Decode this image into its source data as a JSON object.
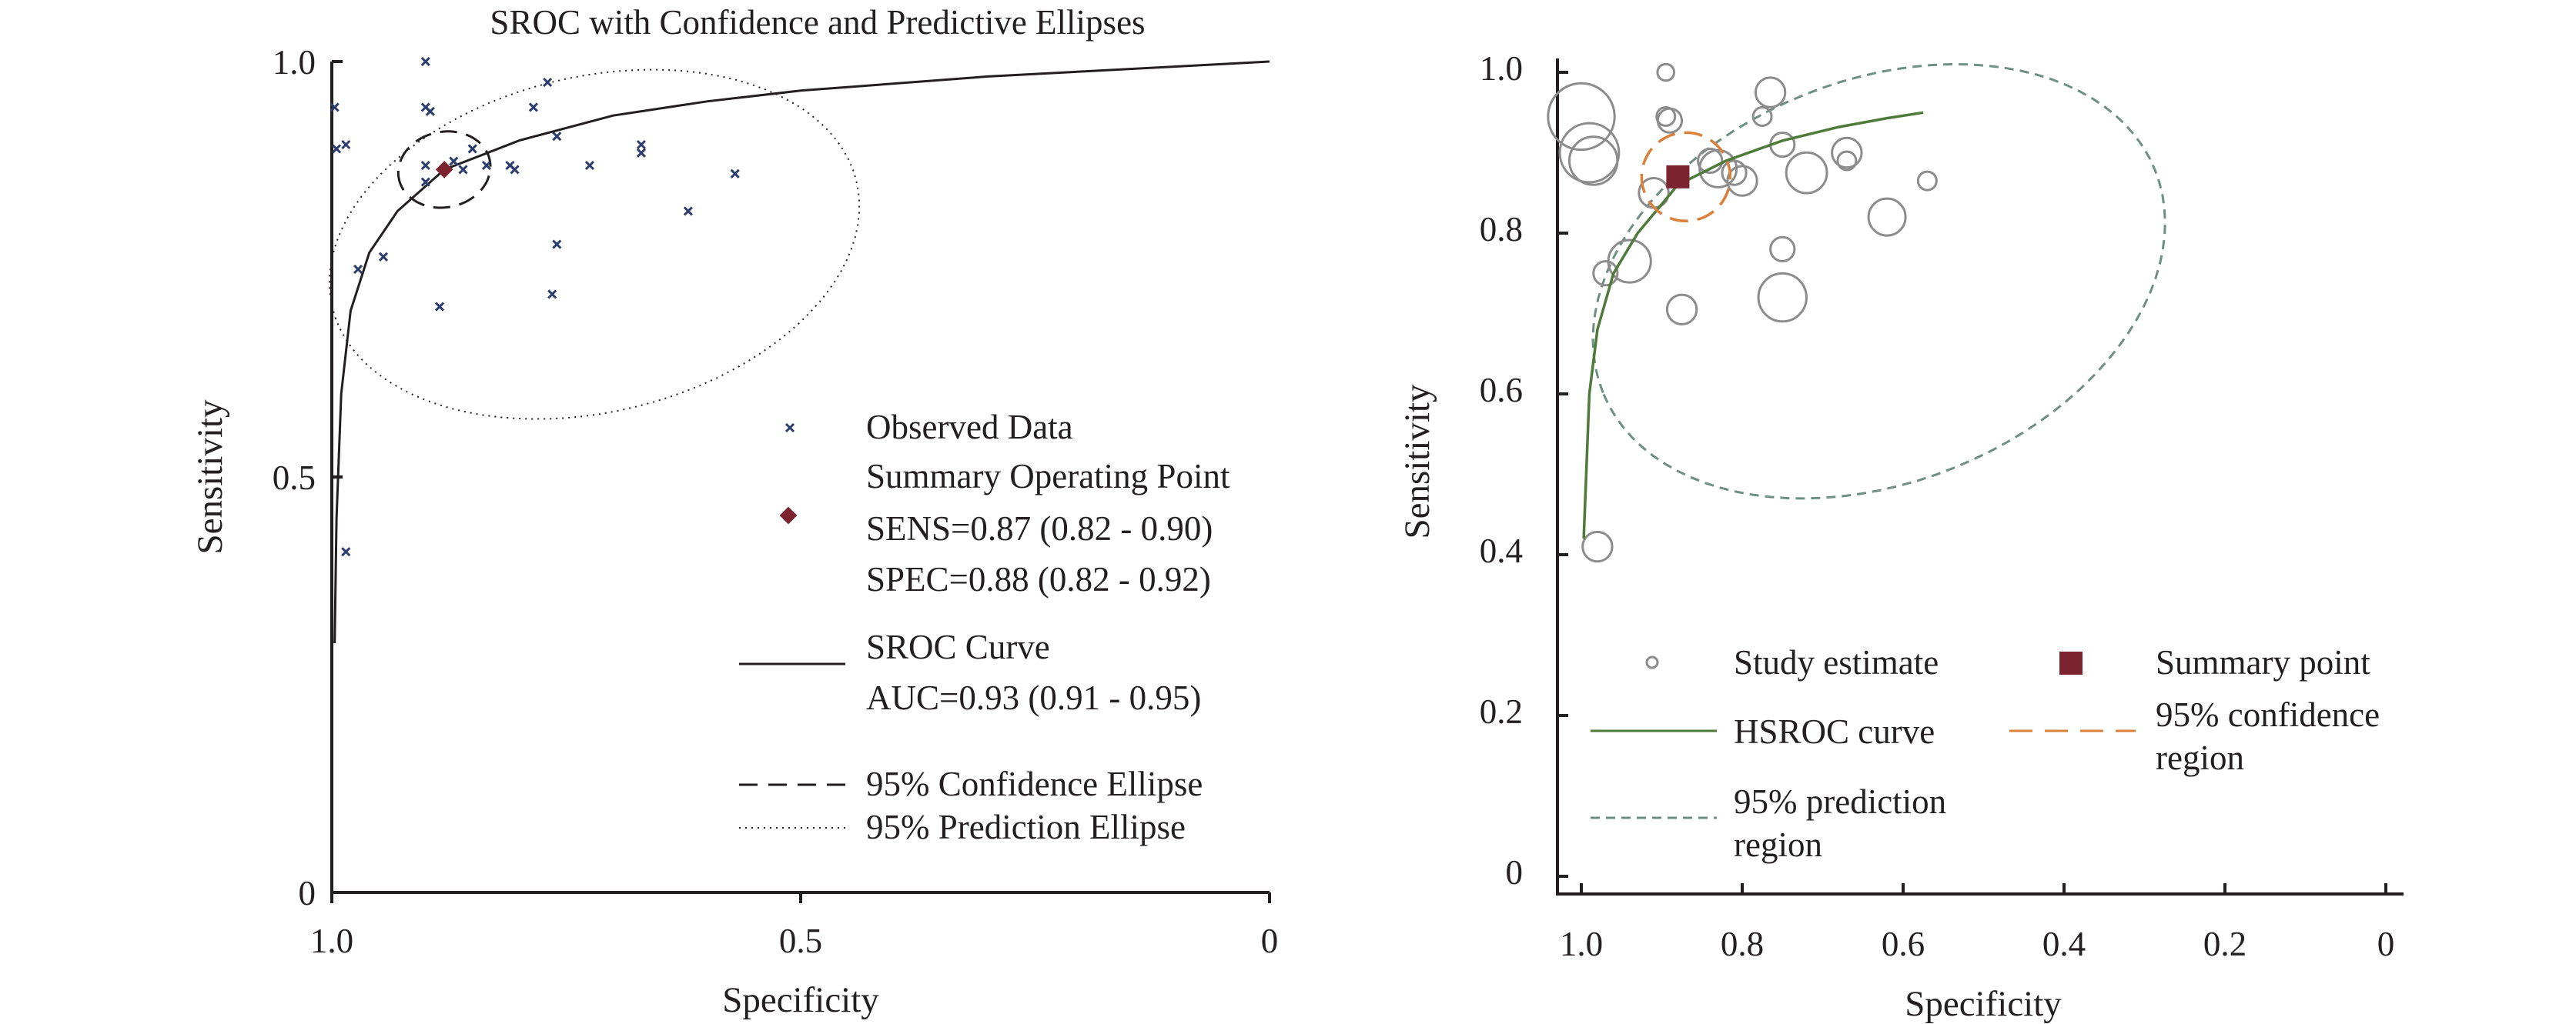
{
  "chart_data": [
    {
      "type": "scatter",
      "title": "SROC with Confidence and Predictive Ellipses",
      "xlabel": "Specificity",
      "ylabel": "Sensitivity",
      "xlim": [
        1.0,
        0.0
      ],
      "ylim": [
        0.0,
        1.0
      ],
      "x_ticks": [
        "1.0",
        "0.5",
        "0"
      ],
      "y_ticks": [
        "0",
        "0.5",
        "1.0"
      ],
      "grid": false,
      "legend_position": "lower-right",
      "legend": {
        "observed": "Observed Data",
        "summary": "Summary Operating Point",
        "sens": "SENS=0.87 (0.82 - 0.90)",
        "spec": "SPEC=0.88 (0.82 - 0.92)",
        "sroc": "SROC Curve",
        "auc": "AUC=0.93 (0.91 - 0.95)",
        "conf": "95% Confidence Ellipse",
        "pred": "95% Prediction Ellipse"
      },
      "colors": {
        "points": "#2b3d6e",
        "summary": "#7b2430",
        "lines": "#231f20"
      },
      "observed_points": [
        {
          "spec": 0.997,
          "sens": 0.945
        },
        {
          "spec": 0.995,
          "sens": 0.895
        },
        {
          "spec": 0.985,
          "sens": 0.9
        },
        {
          "spec": 0.985,
          "sens": 0.41
        },
        {
          "spec": 0.972,
          "sens": 0.75
        },
        {
          "spec": 0.945,
          "sens": 0.765
        },
        {
          "spec": 0.9,
          "sens": 1.0
        },
        {
          "spec": 0.9,
          "sens": 0.945
        },
        {
          "spec": 0.895,
          "sens": 0.94
        },
        {
          "spec": 0.9,
          "sens": 0.875
        },
        {
          "spec": 0.9,
          "sens": 0.855
        },
        {
          "spec": 0.885,
          "sens": 0.705
        },
        {
          "spec": 0.87,
          "sens": 0.88
        },
        {
          "spec": 0.86,
          "sens": 0.87
        },
        {
          "spec": 0.85,
          "sens": 0.895
        },
        {
          "spec": 0.835,
          "sens": 0.875
        },
        {
          "spec": 0.81,
          "sens": 0.875
        },
        {
          "spec": 0.805,
          "sens": 0.87
        },
        {
          "spec": 0.785,
          "sens": 0.945
        },
        {
          "spec": 0.77,
          "sens": 0.975
        },
        {
          "spec": 0.76,
          "sens": 0.91
        },
        {
          "spec": 0.76,
          "sens": 0.78
        },
        {
          "spec": 0.765,
          "sens": 0.72
        },
        {
          "spec": 0.725,
          "sens": 0.875
        },
        {
          "spec": 0.67,
          "sens": 0.9
        },
        {
          "spec": 0.67,
          "sens": 0.89
        },
        {
          "spec": 0.62,
          "sens": 0.82
        },
        {
          "spec": 0.57,
          "sens": 0.865
        }
      ],
      "summary_point": {
        "spec": 0.88,
        "sens": 0.87
      },
      "sroc_curve": [
        {
          "spec": 0.997,
          "sens": 0.3
        },
        {
          "spec": 0.995,
          "sens": 0.45
        },
        {
          "spec": 0.99,
          "sens": 0.6
        },
        {
          "spec": 0.98,
          "sens": 0.7
        },
        {
          "spec": 0.96,
          "sens": 0.77
        },
        {
          "spec": 0.93,
          "sens": 0.82
        },
        {
          "spec": 0.88,
          "sens": 0.87
        },
        {
          "spec": 0.8,
          "sens": 0.905
        },
        {
          "spec": 0.7,
          "sens": 0.935
        },
        {
          "spec": 0.6,
          "sens": 0.952
        },
        {
          "spec": 0.5,
          "sens": 0.965
        },
        {
          "spec": 0.3,
          "sens": 0.982
        },
        {
          "spec": 0.1,
          "sens": 0.994
        },
        {
          "spec": 0.0,
          "sens": 1.0
        }
      ],
      "confidence_ellipse": {
        "spec": 0.88,
        "sens": 0.87,
        "spec_halfwidth": 0.05,
        "sens_halfwidth": 0.045,
        "tilt_deg": -25
      },
      "prediction_ellipse": {
        "spec": 0.72,
        "sens": 0.78,
        "spec_halfwidth": 0.29,
        "sens_halfwidth": 0.2,
        "tilt_deg": -18
      }
    },
    {
      "type": "scatter",
      "title": "",
      "xlabel": "Specificity",
      "ylabel": "Sensitivity",
      "xlim": [
        1.0,
        0.0
      ],
      "ylim": [
        0.0,
        1.0
      ],
      "x_ticks": [
        "1.0",
        "0.8",
        "0.6",
        "0.4",
        "0.2",
        "0"
      ],
      "y_ticks": [
        "0",
        "0.2",
        "0.4",
        "0.6",
        "0.8",
        "1.0"
      ],
      "grid": false,
      "legend_position": "bottom",
      "legend": {
        "study": "Study estimate",
        "summary": "Summary point",
        "hsroc": "HSROC curve",
        "conf_line1": "95% confidence",
        "conf_line2": "region",
        "pred_line1": "95% prediction",
        "pred_line2": "region"
      },
      "colors": {
        "study": "#8c8c8c",
        "summary": "#7b2430",
        "hsroc": "#4e7a3a",
        "confidence": "#d9803a",
        "prediction": "#6e8f84"
      },
      "study_estimates": [
        {
          "spec": 1.0,
          "sens": 0.945,
          "weight": 3.6
        },
        {
          "spec": 0.99,
          "sens": 0.9,
          "weight": 3.2
        },
        {
          "spec": 0.985,
          "sens": 0.89,
          "weight": 2.6
        },
        {
          "spec": 0.98,
          "sens": 0.41,
          "weight": 1.6
        },
        {
          "spec": 0.97,
          "sens": 0.75,
          "weight": 1.3
        },
        {
          "spec": 0.94,
          "sens": 0.765,
          "weight": 2.3
        },
        {
          "spec": 0.91,
          "sens": 0.85,
          "weight": 1.6
        },
        {
          "spec": 0.895,
          "sens": 1.0,
          "weight": 0.9
        },
        {
          "spec": 0.895,
          "sens": 0.945,
          "weight": 1.0
        },
        {
          "spec": 0.89,
          "sens": 0.94,
          "weight": 1.3
        },
        {
          "spec": 0.875,
          "sens": 0.705,
          "weight": 1.6
        },
        {
          "spec": 0.84,
          "sens": 0.89,
          "weight": 1.3
        },
        {
          "spec": 0.83,
          "sens": 0.88,
          "weight": 2.0
        },
        {
          "spec": 0.81,
          "sens": 0.875,
          "weight": 1.3
        },
        {
          "spec": 0.8,
          "sens": 0.865,
          "weight": 1.6
        },
        {
          "spec": 0.775,
          "sens": 0.945,
          "weight": 1.0
        },
        {
          "spec": 0.765,
          "sens": 0.975,
          "weight": 1.6
        },
        {
          "spec": 0.75,
          "sens": 0.91,
          "weight": 1.3
        },
        {
          "spec": 0.75,
          "sens": 0.78,
          "weight": 1.3
        },
        {
          "spec": 0.75,
          "sens": 0.72,
          "weight": 2.6
        },
        {
          "spec": 0.72,
          "sens": 0.875,
          "weight": 2.2
        },
        {
          "spec": 0.67,
          "sens": 0.9,
          "weight": 1.6
        },
        {
          "spec": 0.67,
          "sens": 0.89,
          "weight": 1.0
        },
        {
          "spec": 0.62,
          "sens": 0.82,
          "weight": 2.0
        },
        {
          "spec": 0.57,
          "sens": 0.865,
          "weight": 1.0
        }
      ],
      "summary_point": {
        "spec": 0.88,
        "sens": 0.87
      },
      "hsroc_curve": [
        {
          "spec": 0.997,
          "sens": 0.42
        },
        {
          "spec": 0.99,
          "sens": 0.6
        },
        {
          "spec": 0.98,
          "sens": 0.68
        },
        {
          "spec": 0.96,
          "sens": 0.75
        },
        {
          "spec": 0.93,
          "sens": 0.8
        },
        {
          "spec": 0.88,
          "sens": 0.86
        },
        {
          "spec": 0.82,
          "sens": 0.89
        },
        {
          "spec": 0.75,
          "sens": 0.915
        },
        {
          "spec": 0.68,
          "sens": 0.932
        },
        {
          "spec": 0.62,
          "sens": 0.943
        },
        {
          "spec": 0.575,
          "sens": 0.95
        }
      ],
      "confidence_region": {
        "spec": 0.87,
        "sens": 0.87,
        "spec_halfwidth": 0.055,
        "sens_halfwidth": 0.055,
        "tilt_deg": -20
      },
      "prediction_region": {
        "spec": 0.63,
        "sens": 0.74,
        "spec_halfwidth": 0.37,
        "sens_halfwidth": 0.25,
        "tilt_deg": -22
      }
    }
  ]
}
